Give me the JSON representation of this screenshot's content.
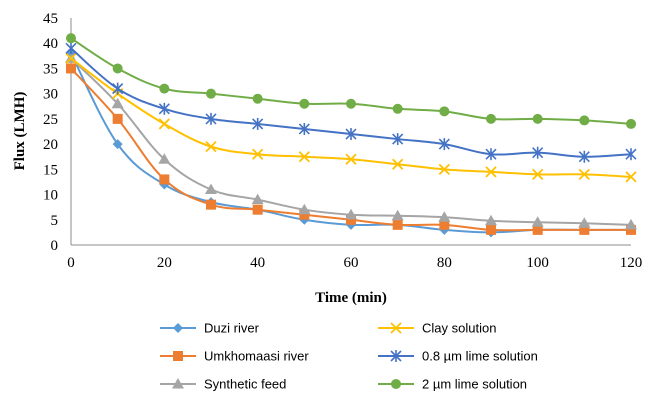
{
  "chart_data": {
    "type": "line",
    "title": "",
    "xlabel": "Time (min)",
    "ylabel": "Flux (LMH)",
    "xlim": [
      0,
      120
    ],
    "ylim": [
      0,
      45
    ],
    "xticks": [
      0,
      20,
      40,
      60,
      80,
      100,
      120
    ],
    "yticks": [
      0,
      5,
      10,
      15,
      20,
      25,
      30,
      35,
      40,
      45
    ],
    "grid": false,
    "legend_position": "bottom",
    "x": [
      0,
      10,
      20,
      30,
      40,
      50,
      60,
      70,
      80,
      90,
      100,
      110,
      120
    ],
    "series": [
      {
        "name": "Duzi river",
        "color": "#5b9bd5",
        "marker": "diamond",
        "values": [
          38,
          20,
          12,
          8.5,
          7,
          5,
          4,
          4,
          3,
          2.5,
          3,
          3,
          3
        ]
      },
      {
        "name": "Umkhomaasi river",
        "color": "#ed7d31",
        "marker": "square",
        "values": [
          35,
          25,
          13,
          8,
          7,
          6,
          5,
          4,
          4,
          3,
          3,
          3,
          3
        ]
      },
      {
        "name": "Synthetic feed",
        "color": "#a5a5a5",
        "marker": "triangle",
        "values": [
          37,
          28,
          17,
          11,
          9,
          7,
          6,
          5.8,
          5.5,
          4.8,
          4.5,
          4.3,
          4
        ]
      },
      {
        "name": "Clay solution",
        "color": "#ffc000",
        "marker": "x",
        "values": [
          37,
          30,
          24,
          19.5,
          18,
          17.5,
          17,
          16,
          15,
          14.5,
          14,
          14,
          13.5
        ]
      },
      {
        "name": "0.8 µm lime solution",
        "color": "#4472c4",
        "marker": "asterisk",
        "values": [
          39,
          31,
          27,
          25,
          24,
          23,
          22,
          21,
          20,
          18,
          18.3,
          17.5,
          18
        ]
      },
      {
        "name": "2 µm lime solution",
        "color": "#70ad47",
        "marker": "circle",
        "values": [
          41,
          35,
          31,
          30,
          29,
          28,
          28,
          27,
          26.5,
          25,
          25,
          24.7,
          24
        ]
      }
    ]
  }
}
